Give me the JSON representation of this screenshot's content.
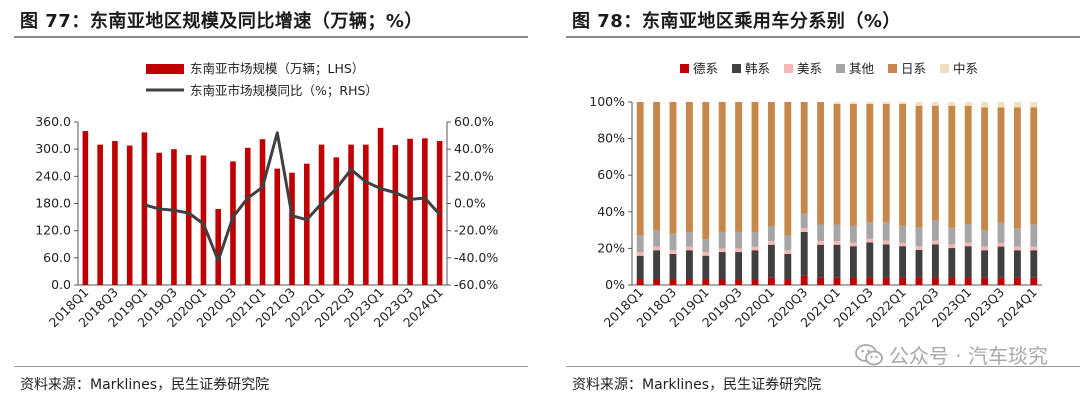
{
  "watermark": "公众号 · 汽车琰究",
  "figures": [
    {
      "title": "图 77：东南亚地区规模及同比增速（万辆；%）",
      "source": "资料来源：Marklines，民生证券研究院"
    },
    {
      "title": "图 78：东南亚地区乘用车分系别（%）",
      "source": "资料来源：Marklines，民生证券研究院"
    }
  ],
  "chart_data": [
    {
      "type": "bar",
      "categories": [
        "2018Q1",
        "2018Q2",
        "2018Q3",
        "2018Q4",
        "2019Q1",
        "2019Q2",
        "2019Q3",
        "2019Q4",
        "2020Q1",
        "2020Q2",
        "2020Q3",
        "2020Q4",
        "2021Q1",
        "2021Q2",
        "2021Q3",
        "2021Q4",
        "2022Q1",
        "2022Q2",
        "2022Q3",
        "2022Q4",
        "2023Q1",
        "2023Q2",
        "2023Q3",
        "2023Q4",
        "2024Q1"
      ],
      "tick_labels": [
        "2018Q1",
        "",
        "2018Q3",
        "",
        "2019Q1",
        "",
        "2019Q3",
        "",
        "2020Q1",
        "",
        "2020Q3",
        "",
        "2021Q1",
        "",
        "2021Q3",
        "",
        "2022Q1",
        "",
        "2022Q3",
        "",
        "2023Q1",
        "",
        "2023Q3",
        "",
        "2024Q1"
      ],
      "series": [
        {
          "name": "东南亚市场规模（万辆；LHS）",
          "kind": "bar",
          "axis": "left",
          "color": "#c00000",
          "values": [
            340,
            310,
            318,
            308,
            337,
            292,
            300,
            287,
            286,
            168,
            273,
            303,
            322,
            257,
            248,
            268,
            310,
            282,
            310,
            310,
            347,
            309,
            323,
            324,
            318
          ]
        },
        {
          "name": "东南亚市场规模同比（%；RHS）",
          "kind": "line",
          "axis": "right",
          "color": "#404040",
          "values": [
            null,
            null,
            null,
            null,
            -1,
            -4,
            -5,
            -7,
            -15,
            -42,
            -10,
            4,
            12,
            52,
            -9,
            -12,
            0,
            11,
            25,
            16,
            11,
            8,
            3,
            4,
            -8
          ]
        }
      ],
      "y_left": {
        "ticks": [
          "360.0",
          "300.0",
          "240.0",
          "180.0",
          "120.0",
          "60.0",
          "0.0"
        ],
        "min": 0,
        "max": 360
      },
      "y_right": {
        "ticks": [
          "60.0%",
          "40.0%",
          "20.0%",
          "0.0%",
          "-20.0%",
          "-40.0%",
          "-60.0%"
        ],
        "min": -60,
        "max": 60
      },
      "legend_placement": "top-center",
      "grid": false
    },
    {
      "type": "stacked_bar_percent",
      "categories": [
        "2018Q1",
        "2018Q2",
        "2018Q3",
        "2018Q4",
        "2019Q1",
        "2019Q2",
        "2019Q3",
        "2019Q4",
        "2020Q1",
        "2020Q2",
        "2020Q3",
        "2020Q4",
        "2021Q1",
        "2021Q2",
        "2021Q3",
        "2021Q4",
        "2022Q1",
        "2022Q2",
        "2022Q3",
        "2022Q4",
        "2023Q1",
        "2023Q2",
        "2023Q3",
        "2023Q4",
        "2024Q1"
      ],
      "tick_labels": [
        "2018Q1",
        "",
        "2018Q3",
        "",
        "2019Q1",
        "",
        "2019Q3",
        "",
        "2020Q1",
        "",
        "2020Q3",
        "",
        "2021Q1",
        "",
        "2021Q3",
        "",
        "2022Q1",
        "",
        "2022Q3",
        "",
        "2023Q1",
        "",
        "2023Q3",
        "",
        "2024Q1"
      ],
      "series": [
        {
          "name": "德系",
          "color": "#c00000",
          "values": [
            3,
            3,
            3,
            3,
            3,
            3,
            3,
            3,
            4,
            3,
            5,
            4,
            4,
            4,
            4,
            4,
            4,
            4,
            4,
            4,
            4,
            4,
            4,
            4,
            4
          ]
        },
        {
          "name": "韩系",
          "color": "#404040",
          "values": [
            13,
            16,
            14,
            16,
            13,
            15,
            15,
            16,
            18,
            14,
            24,
            18,
            18,
            17,
            19,
            18,
            17,
            15,
            18,
            16,
            17,
            15,
            17,
            15,
            15
          ]
        },
        {
          "name": "美系",
          "color": "#f4b6b6",
          "values": [
            2,
            2,
            2,
            2,
            2,
            2,
            2,
            2,
            2,
            2,
            2,
            2,
            2,
            2,
            2,
            2,
            2,
            2,
            2,
            2,
            2,
            2,
            2,
            2,
            2
          ]
        },
        {
          "name": "其他",
          "color": "#a6a6a6",
          "values": [
            9,
            9,
            9,
            8,
            7,
            9,
            9,
            8,
            8,
            8,
            8,
            9,
            9,
            9,
            9,
            10,
            9,
            10,
            11,
            9,
            10,
            9,
            11,
            10,
            12
          ]
        },
        {
          "name": "日系",
          "color": "#c8874a",
          "values": [
            73,
            70,
            72,
            71,
            75,
            71,
            71,
            71,
            68,
            73,
            61,
            67,
            66,
            66,
            64,
            64,
            66,
            66,
            62,
            66,
            64,
            67,
            63,
            66,
            64
          ]
        },
        {
          "name": "中系",
          "color": "#f0e0bd",
          "values": [
            0,
            0,
            0,
            0,
            0,
            0,
            0,
            0,
            0,
            0,
            0,
            0,
            1,
            1,
            1,
            1,
            1,
            2,
            2,
            2,
            2,
            3,
            3,
            3,
            3
          ]
        }
      ],
      "y": {
        "ticks": [
          "100%",
          "80%",
          "60%",
          "40%",
          "20%",
          "0%"
        ],
        "min": 0,
        "max": 100
      },
      "legend_placement": "top-center",
      "grid": false
    }
  ]
}
